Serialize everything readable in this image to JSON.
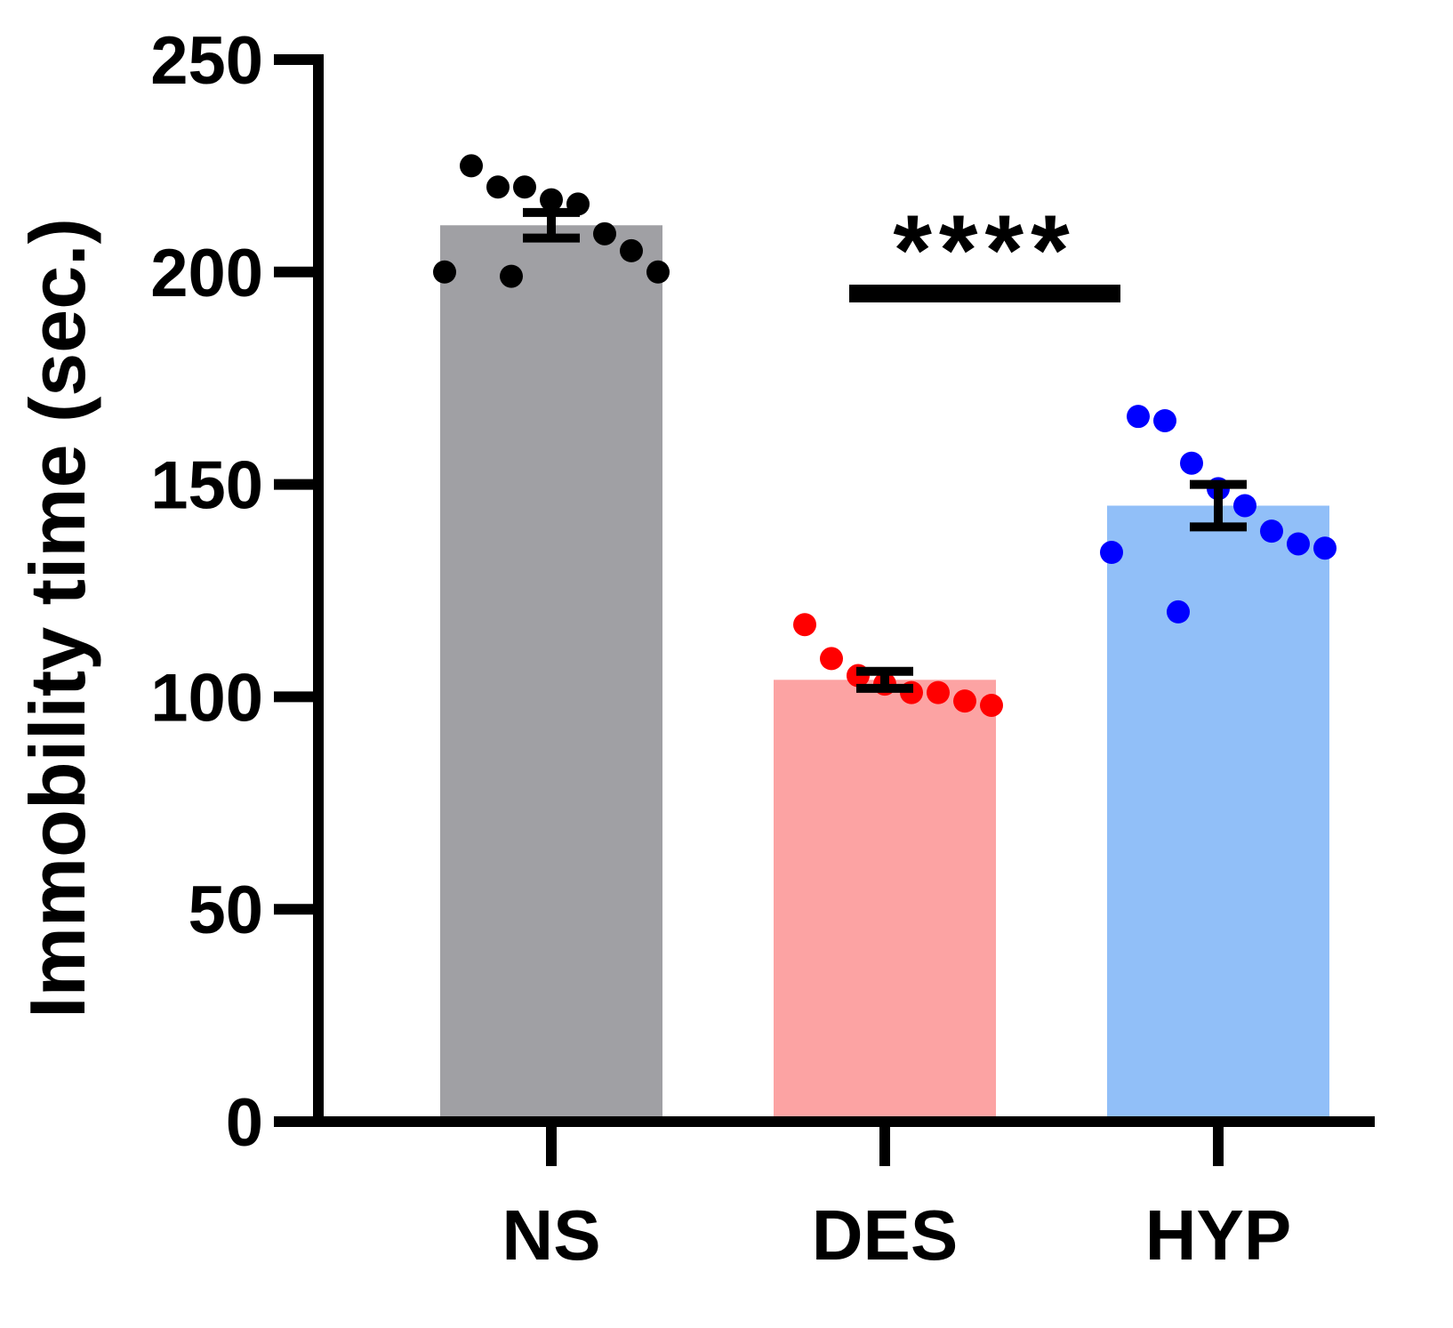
{
  "chart_data": {
    "type": "bar",
    "title": "",
    "xlabel": "",
    "ylabel": "Immobility time (sec.)",
    "ylim": [
      0,
      250
    ],
    "yticks": [
      0,
      50,
      100,
      150,
      200,
      250
    ],
    "categories": [
      "NS",
      "DES",
      "HYP"
    ],
    "values": [
      211,
      104,
      145
    ],
    "sem": [
      3,
      2,
      5
    ],
    "bar_colors": [
      "#a0a0a4",
      "#fca3a3",
      "#91bff8"
    ],
    "point_colors": [
      "#000000",
      "#ff0000",
      "#0000ff"
    ],
    "points": [
      [
        225,
        220,
        220,
        217,
        216,
        209,
        205,
        200,
        200,
        199
      ],
      [
        117,
        109,
        105,
        103,
        101,
        101,
        99,
        98
      ],
      [
        166,
        165,
        155,
        149,
        145,
        139,
        136,
        135,
        134,
        120
      ]
    ],
    "significance": {
      "text": "****",
      "from": "DES",
      "to": "HYP"
    }
  }
}
